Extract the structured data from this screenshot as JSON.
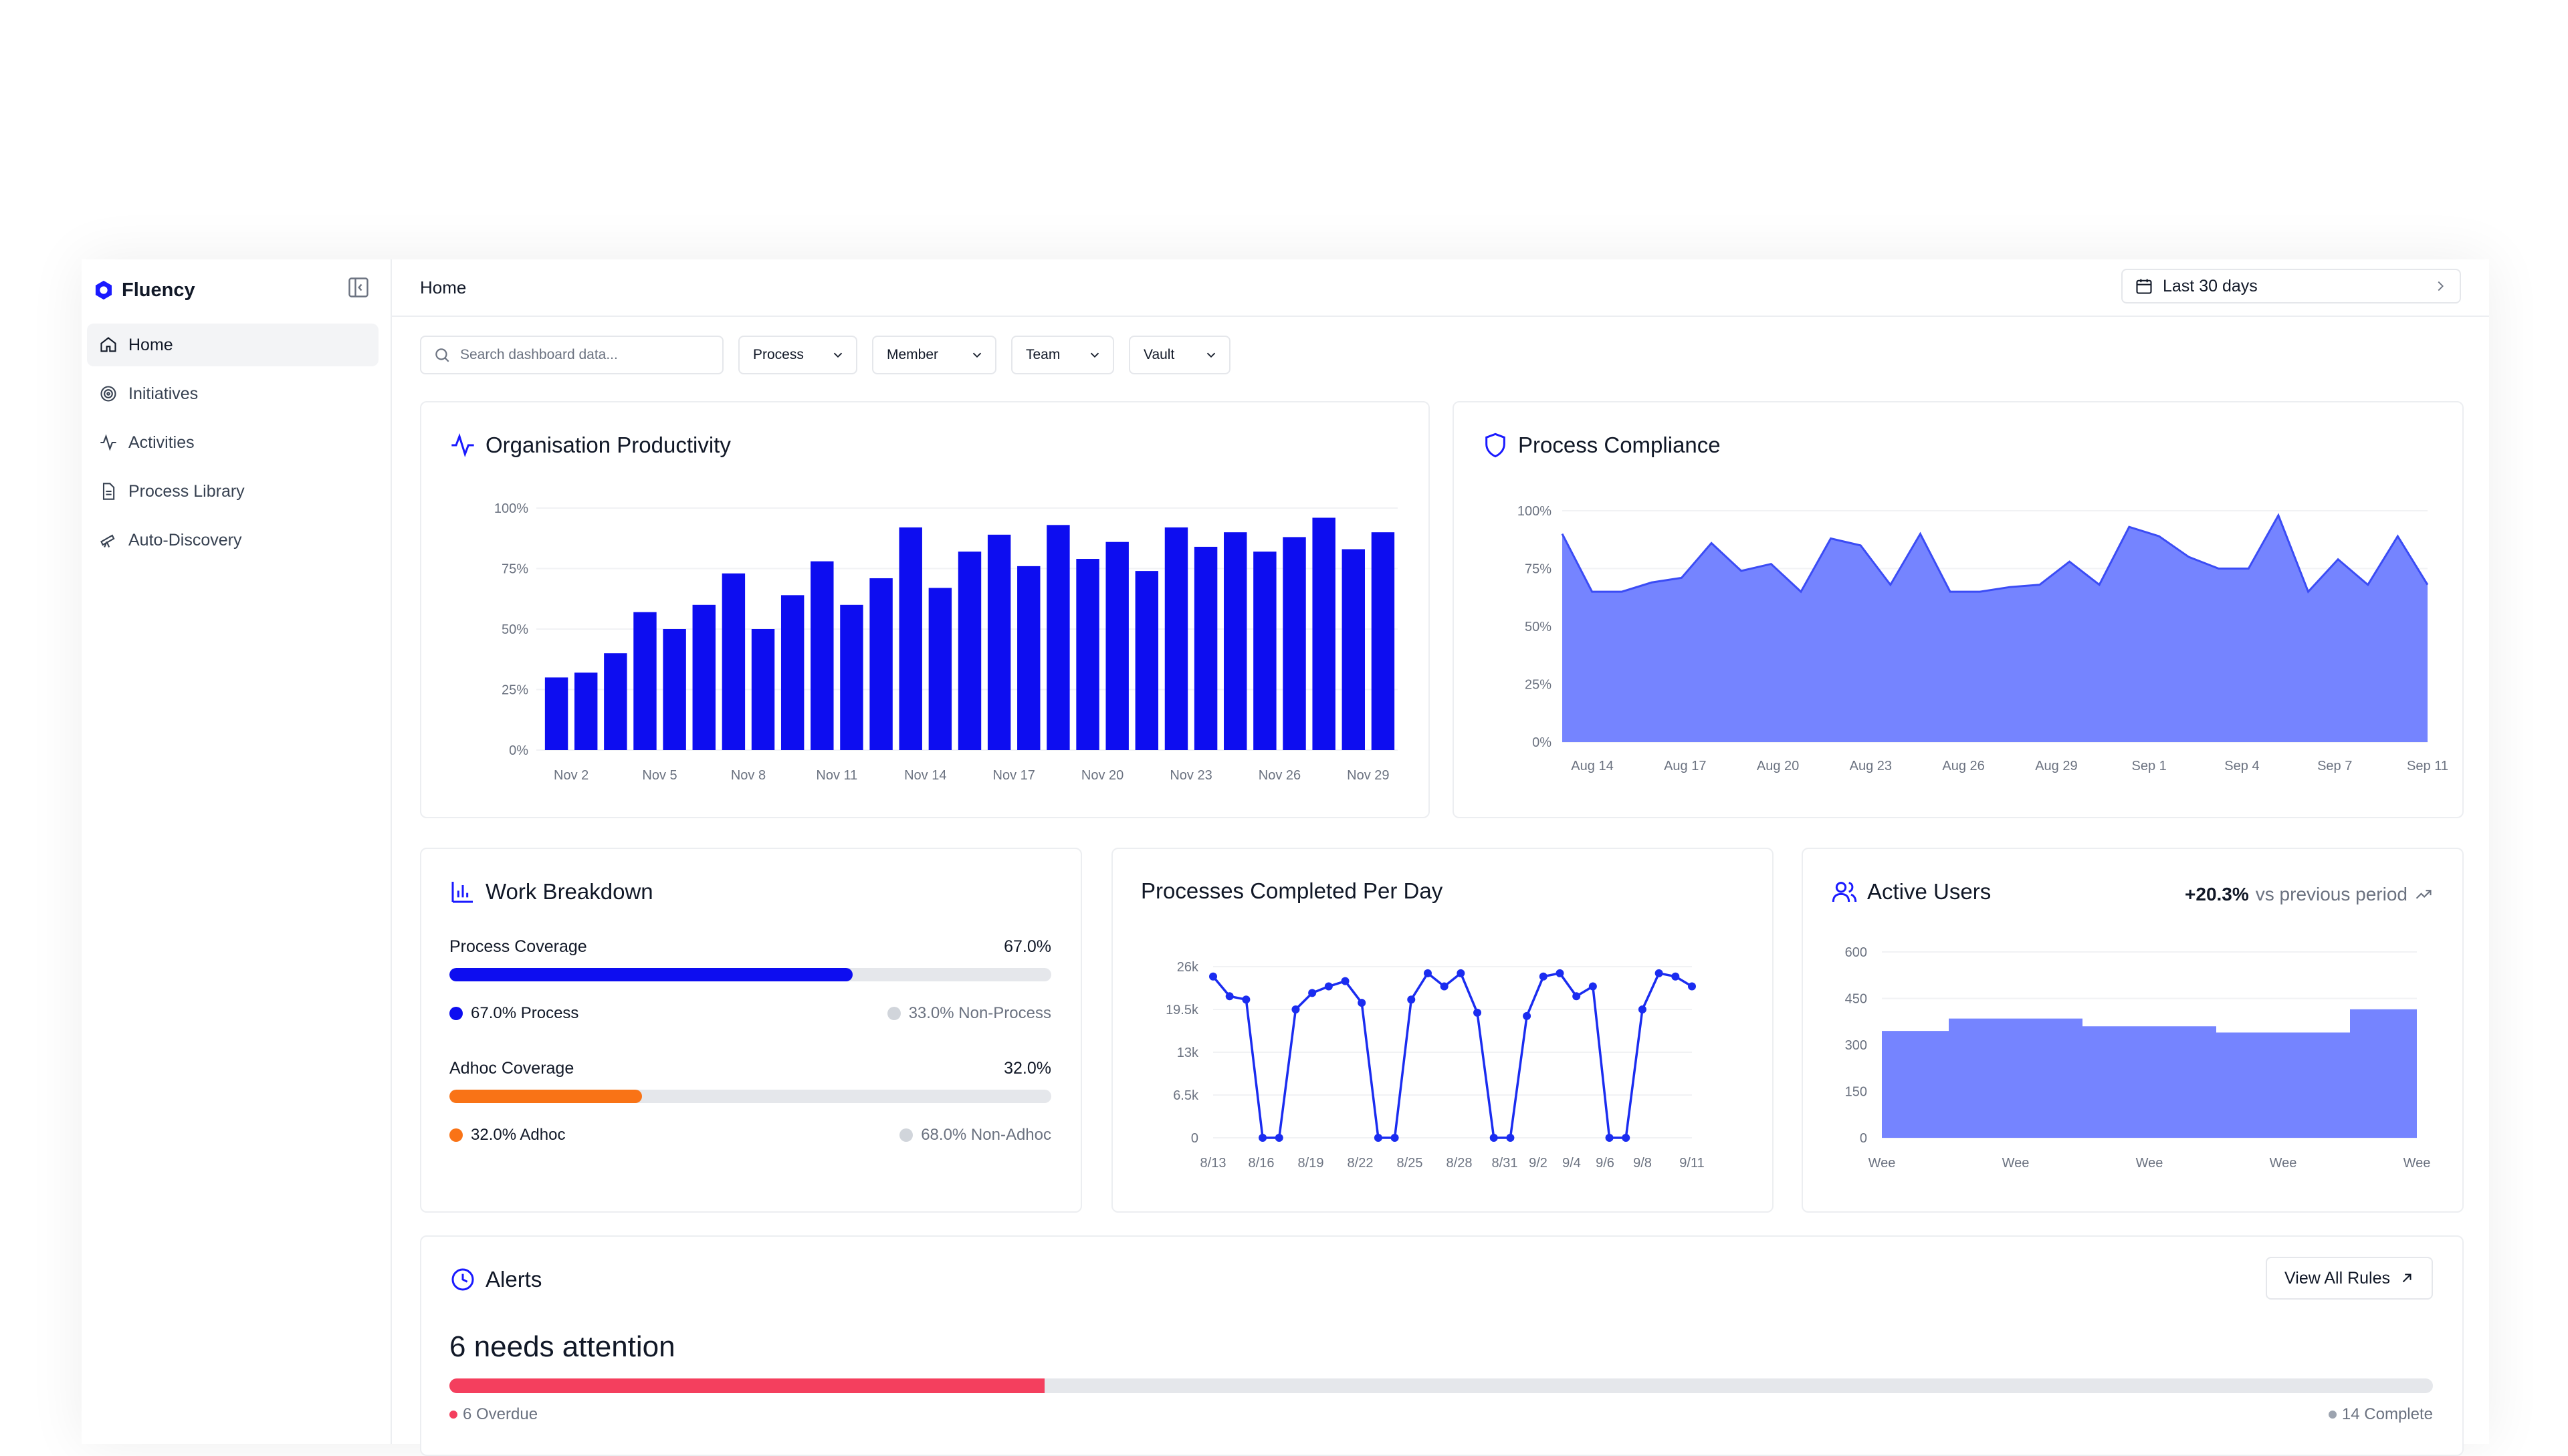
{
  "app": {
    "name": "Fluency",
    "brand_color": "#1a1aff"
  },
  "sidebar": {
    "items": [
      {
        "label": "Home",
        "icon": "home-icon",
        "active": true
      },
      {
        "label": "Initiatives",
        "icon": "target-icon",
        "active": false
      },
      {
        "label": "Activities",
        "icon": "activity-icon",
        "active": false
      },
      {
        "label": "Process Library",
        "icon": "document-icon",
        "active": false
      },
      {
        "label": "Auto-Discovery",
        "icon": "telescope-icon",
        "active": false
      }
    ]
  },
  "header": {
    "breadcrumb": "Home",
    "date_range": "Last 30 days"
  },
  "filters": {
    "search_placeholder": "Search dashboard data...",
    "dropdowns": [
      "Process",
      "Member",
      "Team",
      "Vault"
    ]
  },
  "productivity": {
    "title": "Organisation Productivity",
    "chart_data": {
      "type": "bar",
      "color": "#0d0df0",
      "y_ticks": [
        "100%",
        "75%",
        "50%",
        "25%",
        "0%"
      ],
      "ylim": [
        0,
        100
      ],
      "x_tick_labels": [
        "Nov 2",
        "Nov 5",
        "Nov 8",
        "Nov 11",
        "Nov 14",
        "Nov 17",
        "Nov 20",
        "Nov 23",
        "Nov 26",
        "Nov 29"
      ],
      "values": [
        30,
        32,
        40,
        57,
        50,
        60,
        73,
        50,
        64,
        78,
        60,
        71,
        92,
        67,
        82,
        89,
        76,
        93,
        79,
        86,
        74,
        92,
        84,
        90,
        82,
        88,
        96,
        83,
        90
      ]
    }
  },
  "compliance": {
    "title": "Process Compliance",
    "chart_data": {
      "type": "area",
      "color": "#7584ff",
      "stroke": "#3b4cf5",
      "y_ticks": [
        "100%",
        "75%",
        "25%",
        "0%"
      ],
      "y_ticks_full": [
        "100%",
        "75%",
        "50%",
        "25%",
        "0%"
      ],
      "ylim": [
        0,
        100
      ],
      "x_tick_labels": [
        "Aug 14",
        "Aug 17",
        "Aug 20",
        "Aug 23",
        "Aug 26",
        "Aug 29",
        "Sep 1",
        "Sep 4",
        "Sep 7",
        "Sep 11"
      ],
      "values": [
        90,
        65,
        65,
        69,
        71,
        86,
        74,
        77,
        65,
        88,
        85,
        68,
        90,
        65,
        65,
        67,
        68,
        78,
        68,
        93,
        89,
        80,
        75,
        75,
        98,
        65,
        79,
        68,
        89,
        68
      ]
    }
  },
  "work_breakdown": {
    "title": "Work Breakdown",
    "process": {
      "label": "Process Coverage",
      "value_label": "67.0%",
      "fraction": 0.67,
      "color": "#0d0df0",
      "legend_left": "67.0% Process",
      "legend_right": "33.0% Non-Process"
    },
    "adhoc": {
      "label": "Adhoc Coverage",
      "value_label": "32.0%",
      "fraction": 0.32,
      "color": "#f97316",
      "legend_left": "32.0% Adhoc",
      "legend_right": "68.0% Non-Adhoc"
    }
  },
  "processes_per_day": {
    "title": "Processes Completed Per Day",
    "chart_data": {
      "type": "line",
      "color": "#1a2cf0",
      "y_ticks": [
        "26k",
        "19.5k",
        "13k",
        "6.5k",
        "0"
      ],
      "ylim": [
        0,
        26000
      ],
      "x_tick_labels": [
        "8/13",
        "8/16",
        "8/19",
        "8/22",
        "8/25",
        "8/28",
        "8/31",
        "9/2",
        "9/4",
        "9/6",
        "9/8",
        "9/11"
      ],
      "values": [
        24500,
        21500,
        21000,
        0,
        0,
        19500,
        22000,
        23000,
        23800,
        20500,
        0,
        0,
        21000,
        25000,
        23000,
        25000,
        19000,
        0,
        0,
        18500,
        24500,
        25000,
        21500,
        23000,
        0,
        0,
        19500,
        25000,
        24500,
        23000
      ]
    }
  },
  "active_users": {
    "title": "Active Users",
    "delta": "+20.3%",
    "delta_text": "vs previous period",
    "chart_data": {
      "type": "area",
      "color": "#7584ff",
      "y_ticks": [
        "600",
        "450",
        "300",
        "150",
        "0"
      ],
      "ylim": [
        0,
        600
      ],
      "x_tick_labels": [
        "Wee",
        "Wee",
        "Wee",
        "Wee",
        "Wee"
      ],
      "values": [
        345,
        385,
        385,
        360,
        360,
        340,
        340,
        415
      ]
    }
  },
  "alerts": {
    "title": "Alerts",
    "view_all": "View All Rules",
    "headline": "6 needs attention",
    "overdue_fraction": 0.3,
    "overdue_label": "6 Overdue",
    "complete_label": "14 Complete",
    "overdue_color": "#f43f5e",
    "complete_color": "#9ca3af"
  }
}
